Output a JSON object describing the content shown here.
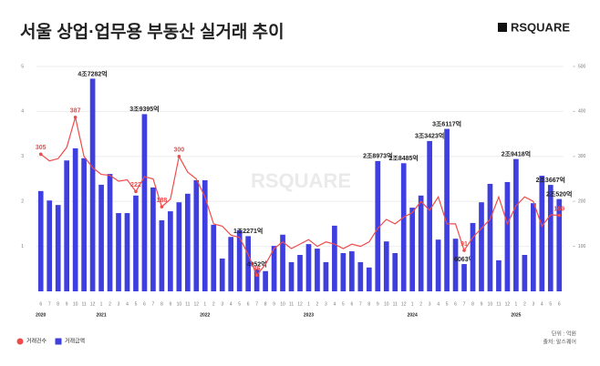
{
  "chart_data": {
    "type": "bar-line",
    "title": "서울 상업·업무용 부동산 실거래 추이",
    "brand": "RSQUARE",
    "watermark": "RSQUARE",
    "unit_note": "단위 : 억원",
    "source": "출처: 알스퀘어",
    "categories": [
      "6",
      "7",
      "8",
      "9",
      "10",
      "11",
      "12",
      "1",
      "2",
      "3",
      "4",
      "5",
      "6",
      "7",
      "8",
      "9",
      "10",
      "11",
      "12",
      "1",
      "2",
      "3",
      "4",
      "5",
      "6",
      "7",
      "8",
      "9",
      "10",
      "11",
      "12",
      "1",
      "2",
      "3",
      "4",
      "5",
      "6",
      "7",
      "8",
      "9",
      "10",
      "11",
      "12",
      "1",
      "2",
      "3",
      "4",
      "5",
      "6",
      "7",
      "8",
      "9",
      "10",
      "11",
      "12",
      "1",
      "2",
      "3",
      "4",
      "5",
      "6"
    ],
    "year_labels": [
      "2020",
      "2021",
      "2022",
      "2023",
      "2024",
      "2025"
    ],
    "ylim": [
      0,
      5
    ],
    "yticks": [
      1,
      2,
      3,
      4,
      5
    ],
    "y2lim": [
      0,
      500
    ],
    "y2ticks": [
      100,
      200,
      300,
      400,
      500
    ],
    "grid": true,
    "series": [
      {
        "name": "거래금액",
        "type": "bar",
        "color": "#3f3fe0",
        "axis": "y",
        "values": [
          2.23,
          2.02,
          1.92,
          2.91,
          3.18,
          2.96,
          4.7282,
          2.37,
          2.61,
          1.74,
          1.74,
          2.13,
          3.9395,
          2.31,
          1.58,
          1.78,
          1.98,
          2.17,
          2.47,
          2.47,
          1.48,
          0.73,
          1.21,
          1.36,
          1.2271,
          0.4952,
          0.45,
          1.01,
          1.26,
          0.65,
          0.81,
          1.05,
          0.95,
          0.65,
          1.46,
          0.85,
          0.89,
          0.65,
          0.53,
          2.8973,
          1.11,
          0.85,
          2.8485,
          1.86,
          2.13,
          3.3423,
          1.15,
          3.6117,
          1.17,
          0.6063,
          1.52,
          1.98,
          2.39,
          0.69,
          2.43,
          2.9418,
          0.81,
          1.96,
          2.57,
          2.3667,
          2.052
        ],
        "value_labels": [
          null,
          null,
          null,
          null,
          null,
          null,
          "4조7282억",
          null,
          null,
          null,
          null,
          null,
          "3조9395억",
          null,
          null,
          null,
          null,
          null,
          null,
          null,
          null,
          null,
          null,
          null,
          "1조2271억",
          "4952억",
          null,
          null,
          null,
          null,
          null,
          null,
          null,
          null,
          null,
          null,
          null,
          null,
          null,
          "2조8973억",
          null,
          null,
          "2조8485억",
          null,
          null,
          "3조3423억",
          null,
          "3조6117억",
          null,
          "6063억",
          null,
          null,
          null,
          null,
          null,
          "2조9418억",
          null,
          null,
          null,
          "2조3667억",
          "2조520억"
        ]
      },
      {
        "name": "거래건수",
        "type": "line",
        "color": "#ef4b4b",
        "axis": "y2",
        "values": [
          305,
          290,
          295,
          320,
          387,
          300,
          275,
          260,
          258,
          245,
          248,
          222,
          255,
          250,
          188,
          205,
          300,
          265,
          250,
          210,
          150,
          145,
          125,
          120,
          82,
          36,
          60,
          95,
          110,
          95,
          105,
          115,
          100,
          110,
          105,
          95,
          105,
          100,
          110,
          140,
          160,
          150,
          165,
          175,
          200,
          180,
          210,
          150,
          150,
          91,
          120,
          140,
          160,
          210,
          150,
          190,
          210,
          200,
          145,
          170,
          169
        ],
        "value_labels": [
          "305",
          null,
          null,
          null,
          "387",
          null,
          null,
          null,
          null,
          null,
          null,
          "222",
          null,
          null,
          "188",
          null,
          "300",
          null,
          null,
          null,
          null,
          null,
          null,
          null,
          null,
          "36",
          null,
          null,
          null,
          null,
          null,
          null,
          null,
          null,
          null,
          null,
          null,
          null,
          null,
          null,
          null,
          null,
          null,
          null,
          null,
          null,
          null,
          null,
          null,
          "91",
          null,
          null,
          null,
          null,
          null,
          null,
          null,
          null,
          null,
          null,
          "169"
        ]
      }
    ]
  }
}
